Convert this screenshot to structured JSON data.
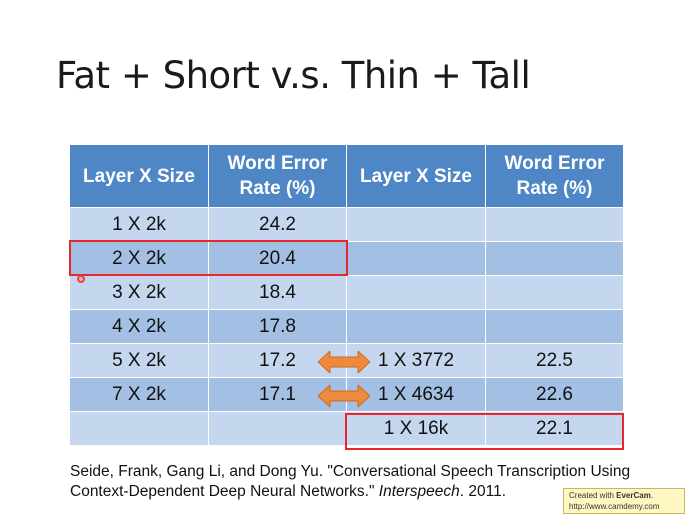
{
  "slide": {
    "title": "Fat + Short v.s. Thin + Tall"
  },
  "table": {
    "headers": [
      "Layer X Size",
      "Word Error Rate (%)",
      "Layer X Size",
      "Word Error Rate (%)"
    ],
    "rows": [
      [
        "1 X 2k",
        "24.2",
        "",
        ""
      ],
      [
        "2 X 2k",
        "20.4",
        "",
        ""
      ],
      [
        "3 X 2k",
        "18.4",
        "",
        ""
      ],
      [
        "4 X 2k",
        "17.8",
        "",
        ""
      ],
      [
        "5 X 2k",
        "17.2",
        "1 X 3772",
        "22.5"
      ],
      [
        "7 X 2k",
        "17.1",
        "1 X 4634",
        "22.6"
      ],
      [
        "",
        "",
        "1 X 16k",
        "22.1"
      ]
    ]
  },
  "citation": {
    "text": "Seide, Frank, Gang Li, and Dong Yu. \"Conversational Speech Transcription Using Context-Dependent Deep Neural Networks.\" ",
    "venue": "Interspeech",
    "year": ". 2011."
  },
  "watermark": {
    "line1_prefix": "Created with ",
    "brand": "EverCam",
    "line1_suffix": ".",
    "url": "http://www.camdemy.com"
  },
  "colors": {
    "header": "#4f86c6",
    "row_light": "#c5d7ee",
    "row_dark": "#a3c0e4",
    "highlight_box": "#e8262b",
    "arrow": "#ee8a3a"
  }
}
